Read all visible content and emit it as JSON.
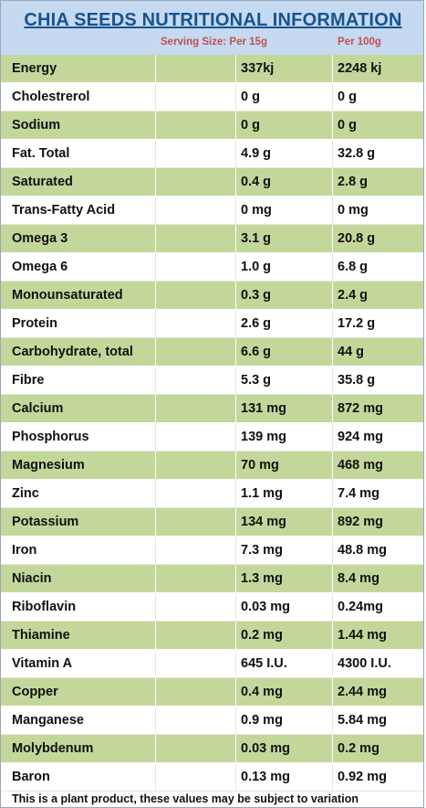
{
  "header": {
    "title": "CHIA SEEDS NUTRITIONAL INFORMATION",
    "serving_label": "Serving  Size:  Per 15g",
    "per100_label": "Per 100g"
  },
  "rows": [
    {
      "name": "Energy",
      "per15": "337kj",
      "per100": "2248 kj"
    },
    {
      "name": "Cholestrerol",
      "per15": "0 g",
      "per100": "0 g"
    },
    {
      "name": "Sodium",
      "per15": "0 g",
      "per100": "0 g"
    },
    {
      "name": "Fat. Total",
      "per15": "4.9 g",
      "per100": "32.8 g"
    },
    {
      "name": "Saturated",
      "per15": "0.4 g",
      "per100": "2.8 g"
    },
    {
      "name": "Trans-Fatty Acid",
      "per15": "0 mg",
      "per100": "0 mg"
    },
    {
      "name": "Omega 3",
      "per15": "3.1 g",
      "per100": "20.8 g"
    },
    {
      "name": "Omega 6",
      "per15": "1.0 g",
      "per100": "6.8 g"
    },
    {
      "name": "Monounsaturated",
      "per15": "0.3 g",
      "per100": "2.4 g"
    },
    {
      "name": "Protein",
      "per15": "2.6 g",
      "per100": "17.2 g"
    },
    {
      "name": "Carbohydrate, total",
      "per15": "6.6 g",
      "per100": "44 g"
    },
    {
      "name": "Fibre",
      "per15": "5.3 g",
      "per100": "35.8 g"
    },
    {
      "name": "Calcium",
      "per15": "131 mg",
      "per100": "872 mg"
    },
    {
      "name": "Phosphorus",
      "per15": "139 mg",
      "per100": "924 mg"
    },
    {
      "name": "Magnesium",
      "per15": "70 mg",
      "per100": "468 mg"
    },
    {
      "name": "Zinc",
      "per15": "1.1 mg",
      "per100": "7.4 mg"
    },
    {
      "name": "Potassium",
      "per15": "134 mg",
      "per100": "892 mg"
    },
    {
      "name": "Iron",
      "per15": "7.3 mg",
      "per100": "48.8 mg"
    },
    {
      "name": "Niacin",
      "per15": "1.3 mg",
      "per100": "8.4 mg"
    },
    {
      "name": "Riboflavin",
      "per15": "0.03 mg",
      "per100": "0.24mg"
    },
    {
      "name": "Thiamine",
      "per15": "0.2 mg",
      "per100": "1.44 mg"
    },
    {
      "name": "Vitamin A",
      "per15": "645 I.U.",
      "per100": "4300 I.U."
    },
    {
      "name": "Copper",
      "per15": "0.4 mg",
      "per100": "2.44 mg"
    },
    {
      "name": "Manganese",
      "per15": "0.9 mg",
      "per100": "5.84 mg"
    },
    {
      "name": "Molybdenum",
      "per15": "0.03 mg",
      "per100": "0.2 mg"
    },
    {
      "name": "Baron",
      "per15": "0.13 mg",
      "per100": "0.92 mg"
    }
  ],
  "footer": {
    "note": "This is a plant product, these values may be subject to variation"
  },
  "colors": {
    "header_bg": "#c5d9f1",
    "title_color": "#17538d",
    "subheader_color": "#c0504d",
    "band_green": "#c4d79b"
  }
}
